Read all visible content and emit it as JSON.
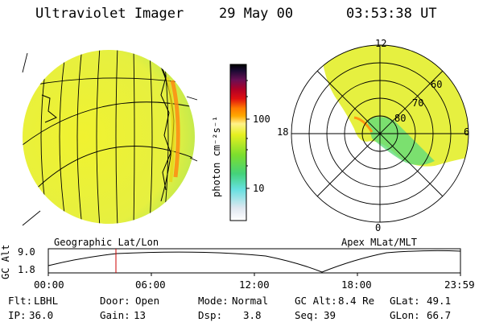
{
  "header": {
    "instrument": "Ultraviolet Imager",
    "date": "29 May 00",
    "time": "03:53:38 UT"
  },
  "colorbar": {
    "unit_label": "photon cm⁻²s⁻¹",
    "tick_100": "100",
    "tick_10": "10",
    "scale": "log",
    "colors": [
      "#ffffff",
      "#dfe7f0",
      "#66e0e0",
      "#44d27a",
      "#7cde2e",
      "#e6f020",
      "#fff28a",
      "#ffa800",
      "#ff7a00",
      "#e01010",
      "#b00026",
      "#6a0f55",
      "#1b0a33",
      "#000000"
    ]
  },
  "geographic_map": {
    "label": "Geographic Lat/Lon",
    "fill_color": "#e8f040"
  },
  "polar_map": {
    "label": "Apex MLat/MLT",
    "mlt_12": "12",
    "mlt_18": "18",
    "mlt_6": "6",
    "mlt_0": "0",
    "lat_60": "60",
    "lat_70": "70",
    "lat_80": "80"
  },
  "altitude_plot": {
    "ylabel": "GC Alt",
    "y_max": "9.0",
    "y_min": "1.8",
    "x_ticks": [
      "00:00",
      "06:00",
      "12:00",
      "18:00",
      "23:59"
    ],
    "current_time_marker_color": "#cc0000"
  },
  "status": {
    "flt_label": "Flt:",
    "flt_value": "LBHL",
    "ip_label": "IP:",
    "ip_value": "36.0",
    "door_label": "Door:",
    "door_value": "Open",
    "gain_label": "Gain:",
    "gain_value": "13",
    "mode_label": "Mode:",
    "mode_value": "Normal",
    "dsp_label": "Dsp:",
    "dsp_value": "3.8",
    "gcalt_label": "GC Alt:",
    "gcalt_value": "8.4 Re",
    "seq_label": "Seq:",
    "seq_value": "39",
    "glat_label": "GLat:",
    "glat_value": "49.1",
    "glon_label": "GLon:",
    "glon_value": "66.7"
  }
}
